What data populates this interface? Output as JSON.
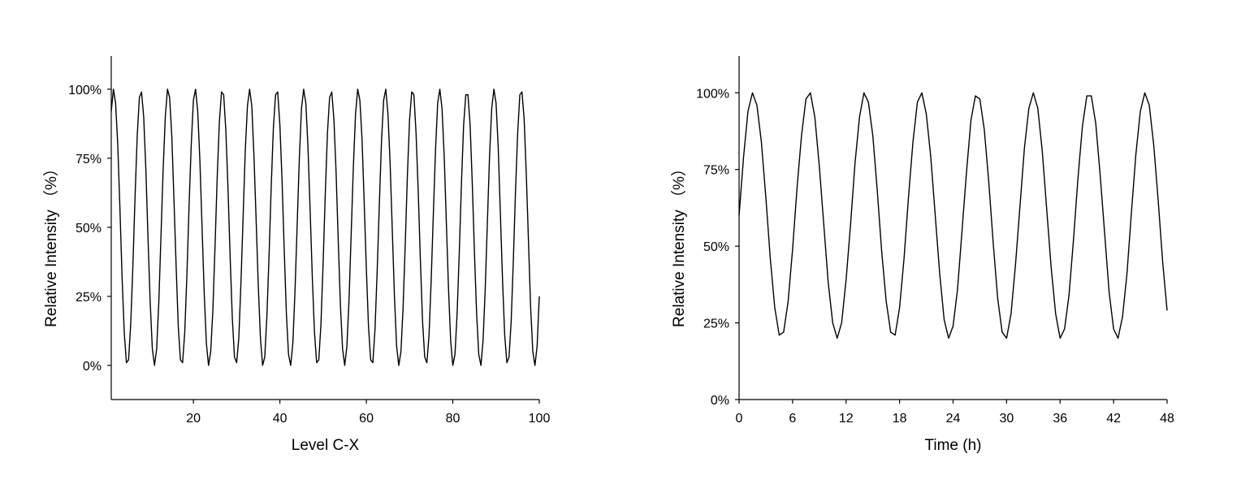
{
  "chart_data": [
    {
      "type": "line",
      "x_label": "Level C-X",
      "y_label": "Relative Intensity （%）",
      "color": "#000000",
      "xlim": [
        1,
        100
      ],
      "ylim": [
        -12.35,
        112
      ],
      "xticks": [
        20,
        40,
        60,
        80,
        100
      ],
      "yticks": [
        {
          "value": 0,
          "label": "0%"
        },
        {
          "value": 25,
          "label": "25%"
        },
        {
          "value": 50,
          "label": "50%"
        },
        {
          "value": 75,
          "label": "75%"
        },
        {
          "value": 100,
          "label": "100%"
        }
      ],
      "x": [
        1,
        1.5,
        2,
        2.5,
        3,
        3.5,
        4,
        4.5,
        5,
        5.5,
        6,
        6.5,
        7,
        7.5,
        8,
        8.5,
        9,
        9.5,
        10,
        10.5,
        11,
        11.5,
        12,
        12.5,
        13,
        13.5,
        14,
        14.5,
        15,
        15.5,
        16,
        16.5,
        17,
        17.5,
        18,
        18.5,
        19,
        19.5,
        20,
        20.5,
        21,
        21.5,
        22,
        22.5,
        23,
        23.5,
        24,
        24.5,
        25,
        25.5,
        26,
        26.5,
        27,
        27.5,
        28,
        28.5,
        29,
        29.5,
        30,
        30.5,
        31,
        31.5,
        32,
        32.5,
        33,
        33.5,
        34,
        34.5,
        35,
        35.5,
        36,
        36.5,
        37,
        37.5,
        38,
        38.5,
        39,
        39.5,
        40,
        40.5,
        41,
        41.5,
        42,
        42.5,
        43,
        43.5,
        44,
        44.5,
        45,
        45.5,
        46,
        46.5,
        47,
        47.5,
        48,
        48.5,
        49,
        49.5,
        50,
        50.5,
        51,
        51.5,
        52,
        52.5,
        53,
        53.5,
        54,
        54.5,
        55,
        55.5,
        56,
        56.5,
        57,
        57.5,
        58,
        58.5,
        59,
        59.5,
        60,
        60.5,
        61,
        61.5,
        62,
        62.5,
        63,
        63.5,
        64,
        64.5,
        65,
        65.5,
        66,
        66.5,
        67,
        67.5,
        68,
        68.5,
        69,
        69.5,
        70,
        70.5,
        71,
        71.5,
        72,
        72.5,
        73,
        73.5,
        74,
        74.5,
        75,
        75.5,
        76,
        76.5,
        77,
        77.5,
        78,
        78.5,
        79,
        79.5,
        80,
        80.5,
        81,
        81.5,
        82,
        82.5,
        83,
        83.5,
        84,
        84.5,
        85,
        85.5,
        86,
        86.5,
        87,
        87.5,
        88,
        88.5,
        89,
        89.5,
        90,
        90.5,
        91,
        91.5,
        92,
        92.5,
        93,
        93.5,
        94,
        94.5,
        95,
        95.5,
        96,
        96.5,
        97,
        97.5,
        98,
        98.5,
        99,
        99.5,
        100
      ],
      "values": [
        92,
        100,
        95,
        80,
        57,
        32,
        12,
        1,
        2,
        15,
        36,
        61,
        83,
        97,
        99,
        90,
        71,
        46,
        23,
        6,
        0,
        6,
        23,
        47,
        71,
        90,
        100,
        97,
        83,
        60,
        36,
        14,
        2,
        1,
        12,
        33,
        58,
        80,
        96,
        100,
        92,
        74,
        50,
        26,
        8,
        0,
        5,
        20,
        43,
        68,
        88,
        99,
        98,
        85,
        64,
        39,
        17,
        3,
        1,
        10,
        30,
        54,
        78,
        94,
        100,
        94,
        76,
        53,
        29,
        10,
        0,
        3,
        18,
        40,
        65,
        86,
        98,
        99,
        87,
        67,
        42,
        19,
        4,
        0,
        8,
        27,
        51,
        75,
        93,
        100,
        95,
        79,
        56,
        32,
        12,
        1,
        2,
        15,
        37,
        62,
        84,
        97,
        99,
        89,
        70,
        45,
        22,
        6,
        0,
        7,
        24,
        48,
        72,
        91,
        100,
        96,
        82,
        59,
        35,
        14,
        2,
        1,
        13,
        34,
        58,
        81,
        96,
        100,
        91,
        73,
        49,
        25,
        7,
        0,
        5,
        21,
        44,
        69,
        89,
        99,
        98,
        84,
        63,
        38,
        16,
        3,
        1,
        11,
        31,
        55,
        78,
        95,
        100,
        93,
        76,
        52,
        28,
        9,
        0,
        4,
        19,
        41,
        66,
        87,
        98,
        98,
        87,
        66,
        41,
        19,
        4,
        0,
        9,
        28,
        52,
        76,
        93,
        100,
        95,
        79,
        55,
        31,
        11,
        1,
        3,
        16,
        38,
        63,
        84,
        98,
        99,
        89,
        69,
        45,
        21,
        5,
        0,
        7,
        25
      ]
    },
    {
      "type": "line",
      "x_label": "Time (h)",
      "y_label": "Relative Intensity （%）",
      "color": "#000000",
      "xlim": [
        0,
        48
      ],
      "ylim": [
        0,
        112
      ],
      "xticks": [
        0,
        6,
        12,
        18,
        24,
        30,
        36,
        42,
        48
      ],
      "yticks": [
        {
          "value": 0,
          "label": "0%"
        },
        {
          "value": 25,
          "label": "25%"
        },
        {
          "value": 50,
          "label": "50%"
        },
        {
          "value": 75,
          "label": "75%"
        },
        {
          "value": 100,
          "label": "100%"
        }
      ],
      "x": [
        0,
        0.5,
        1,
        1.5,
        2,
        2.5,
        3,
        3.5,
        4,
        4.5,
        5,
        5.5,
        6,
        6.5,
        7,
        7.5,
        8,
        8.5,
        9,
        9.5,
        10,
        10.5,
        11,
        11.5,
        12,
        12.5,
        13,
        13.5,
        14,
        14.5,
        15,
        15.5,
        16,
        16.5,
        17,
        17.5,
        18,
        18.5,
        19,
        19.5,
        20,
        20.5,
        21,
        21.5,
        22,
        22.5,
        23,
        23.5,
        24,
        24.5,
        25,
        25.5,
        26,
        26.5,
        27,
        27.5,
        28,
        28.5,
        29,
        29.5,
        30,
        30.5,
        31,
        31.5,
        32,
        32.5,
        33,
        33.5,
        34,
        34.5,
        35,
        35.5,
        36,
        36.5,
        37,
        37.5,
        38,
        38.5,
        39,
        39.5,
        40,
        40.5,
        41,
        41.5,
        42,
        42.5,
        43,
        43.5,
        44,
        44.5,
        45,
        45.5,
        46,
        46.5,
        47,
        47.5,
        48
      ],
      "values": [
        60,
        79,
        94,
        100,
        96,
        84,
        66,
        46,
        30,
        21,
        22,
        32,
        49,
        69,
        86,
        98,
        100,
        92,
        76,
        57,
        38,
        25,
        20,
        25,
        39,
        57,
        77,
        92,
        100,
        97,
        86,
        68,
        48,
        32,
        22,
        21,
        30,
        46,
        66,
        84,
        97,
        100,
        93,
        79,
        60,
        41,
        26,
        20,
        24,
        36,
        55,
        74,
        91,
        99,
        98,
        88,
        71,
        51,
        33,
        22,
        20,
        28,
        44,
        63,
        82,
        95,
        100,
        95,
        81,
        62,
        43,
        28,
        20,
        23,
        34,
        52,
        72,
        89,
        99,
        99,
        90,
        73,
        54,
        35,
        23,
        20,
        27,
        41,
        61,
        80,
        94,
        100,
        96,
        83,
        65,
        45,
        29
      ]
    }
  ]
}
